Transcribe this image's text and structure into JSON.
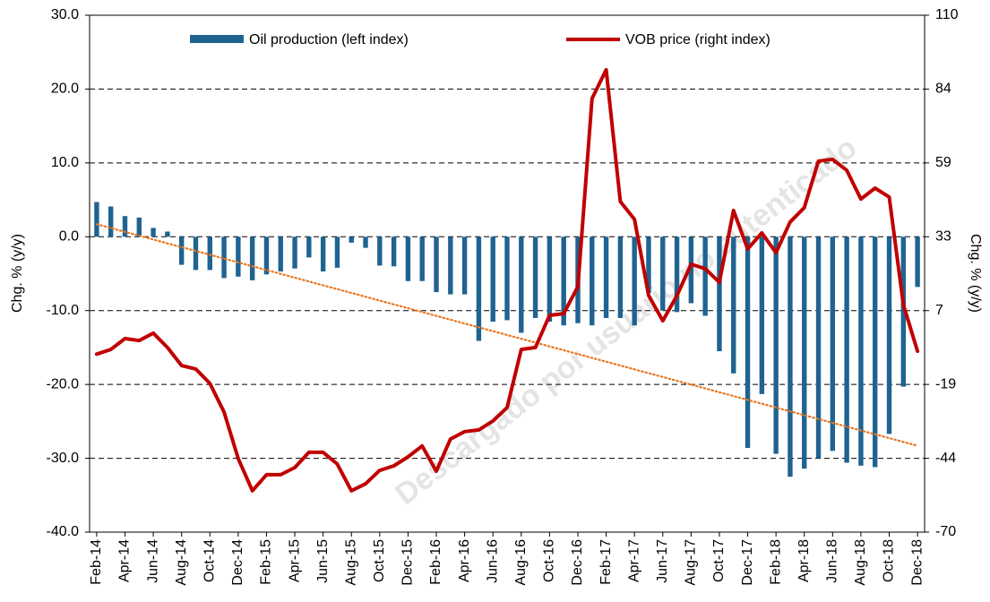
{
  "chart_data": {
    "type": "bar-line",
    "y_label": "Chg. % (y/y)",
    "y2_label": "Chg. % (y/y)",
    "watermark": "Descargado por usuario no autenticado",
    "categories": [
      "Feb-14",
      null,
      "Apr-14",
      null,
      "Jun-14",
      null,
      "Aug-14",
      null,
      "Oct-14",
      null,
      "Dec-14",
      null,
      "Feb-15",
      null,
      "Apr-15",
      null,
      "Jun-15",
      null,
      "Aug-15",
      null,
      "Oct-15",
      null,
      "Dec-15",
      null,
      "Feb-16",
      null,
      "Apr-16",
      null,
      "Jun-16",
      null,
      "Aug-16",
      null,
      "Oct-16",
      null,
      "Dec-16",
      null,
      "Feb-17",
      null,
      "Apr-17",
      null,
      "Jun-17",
      null,
      "Aug-17",
      null,
      "Oct-17",
      null,
      "Dec-17",
      null,
      "Feb-18",
      null,
      "Apr-18",
      null,
      "Jun-18",
      null,
      "Aug-18",
      null,
      "Oct-18",
      null,
      "Dec-18"
    ],
    "series": [
      {
        "name": "Oil production (left index)",
        "color": "#1f6391",
        "kind": "bar",
        "values": [
          4.7,
          4.1,
          2.8,
          2.6,
          1.2,
          0.7,
          -3.8,
          -4.5,
          -4.5,
          -5.6,
          -5.4,
          -5.9,
          -5.1,
          -4.7,
          -4.3,
          -2.8,
          -4.7,
          -4.2,
          -0.8,
          -1.5,
          -3.9,
          -4.0,
          -6.0,
          -6.0,
          -7.5,
          -7.8,
          -7.8,
          -14.1,
          -11.5,
          -11.3,
          -13.0,
          -11.0,
          -11.5,
          -12.0,
          -11.7,
          -12.0,
          -11.0,
          -11.0,
          -12.0,
          -7.6,
          -10.0,
          -10.2,
          -9.0,
          -10.7,
          -15.5,
          -18.5,
          -28.6,
          -21.3,
          -29.4,
          -32.5,
          -31.4,
          -30.0,
          -29.0,
          -30.6,
          -31.0,
          -31.2,
          -26.7,
          -20.3,
          -6.8
        ]
      },
      {
        "name": "VOB price (right index)",
        "color": "#c00000",
        "kind": "line",
        "axis": "y2",
        "values": [
          -8,
          -6.4,
          -2.6,
          -3.3,
          -0.7,
          -5.7,
          -12,
          -13.2,
          -18.2,
          -28.2,
          -44.4,
          -55.6,
          -50,
          -50,
          -47.5,
          -42.2,
          -42.2,
          -46.3,
          -55.6,
          -53.2,
          -48.5,
          -46.9,
          -43.8,
          -40,
          -48.8,
          -37.6,
          -35,
          -34.4,
          -31.3,
          -26.6,
          -6.4,
          -5.7,
          5.5,
          6.1,
          15.5,
          81,
          91,
          45.1,
          38.9,
          12.4,
          3.6,
          12.4,
          23.3,
          21.7,
          17,
          42,
          28.6,
          34.2,
          27.3,
          38,
          43,
          59.2,
          59.8,
          56,
          46,
          49.8,
          46.7,
          9.2,
          -7
        ]
      }
    ],
    "trend": {
      "color": "#e87722",
      "start": 1.7,
      "end": -28.3
    },
    "ylim": [
      -40,
      30
    ],
    "yticks": [
      {
        "value": -40,
        "label": "-40.0"
      },
      {
        "value": -30,
        "label": "-30.0"
      },
      {
        "value": -20,
        "label": "-20.0"
      },
      {
        "value": -10,
        "label": "-10.0"
      },
      {
        "value": 0,
        "label": "0.0"
      },
      {
        "value": 10,
        "label": "10.0"
      },
      {
        "value": 20,
        "label": "20.0"
      },
      {
        "value": 30,
        "label": "30.0"
      }
    ],
    "y2lim": [
      -70,
      110
    ],
    "y2ticks": [
      -70,
      {
        "value": -44.29,
        "label": "-44"
      },
      {
        "value": -18.57,
        "label": "-19"
      },
      {
        "value": 7.14,
        "label": "7"
      },
      {
        "value": 32.86,
        "label": "33"
      },
      {
        "value": 58.57,
        "label": "59"
      },
      {
        "value": 84.29,
        "label": "84"
      },
      110
    ],
    "grid": true
  }
}
